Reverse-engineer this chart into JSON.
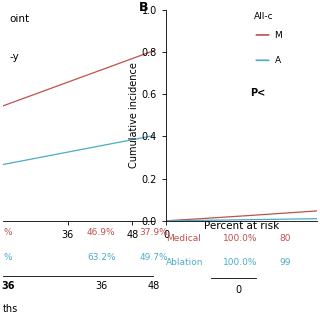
{
  "medical_color": "#c0504d",
  "ablation_color": "#4bacc6",
  "background_color": "#ffffff",
  "ylabel_right": "Cumulative incidence",
  "yticks": [
    0.0,
    0.2,
    0.4,
    0.6,
    0.8,
    1.0
  ],
  "percent_at_risk_title": "Percent at risk",
  "percent_left_medical_0": "%",
  "percent_left_medical_1": "46.9%",
  "percent_left_medical_2": "37.9%",
  "percent_left_ablation_0": "%",
  "percent_left_ablation_1": "63.2%",
  "percent_left_ablation_2": "49.7%",
  "percent_right_medical_1": "100.0%",
  "percent_right_medical_2": "80",
  "percent_right_ablation_1": "100.0%",
  "percent_right_ablation_2": "99",
  "months_label": "ths",
  "left_xtick_0": "36",
  "left_xtick_1": "48",
  "right_xtick_0": "0",
  "bold_label": "B",
  "legend_title": "All-c",
  "legend_m": "M",
  "legend_a": "A",
  "pvalue": "P<"
}
